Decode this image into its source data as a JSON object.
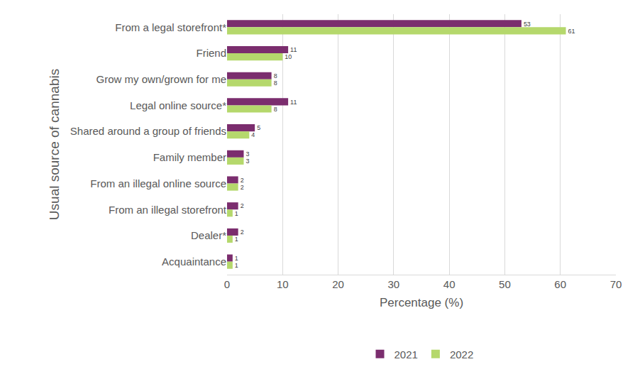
{
  "chart_data": {
    "type": "bar",
    "orientation": "horizontal",
    "xlabel": "Percentage (%)",
    "ylabel": "Usual source of cannabis",
    "categories": [
      "From a legal storefront*",
      "Friend",
      "Grow my own/grown for me",
      "Legal online source*",
      "Shared around a group of friends",
      "Family member",
      "From an illegal online source",
      "From an illegal storefront",
      "Dealer*",
      "Acquaintance"
    ],
    "series": [
      {
        "name": "2021",
        "color": "#7B2D6E",
        "values": [
          53,
          11,
          8,
          11,
          5,
          3,
          2,
          2,
          2,
          1
        ]
      },
      {
        "name": "2022",
        "color": "#B5D86C",
        "values": [
          61,
          10,
          8,
          8,
          4,
          3,
          2,
          1,
          1,
          1
        ]
      }
    ],
    "xlim": [
      0,
      70
    ],
    "xticks": [
      0,
      10,
      20,
      30,
      40,
      50,
      60,
      70
    ],
    "grid": true,
    "legend": "bottom",
    "data_labels": true
  }
}
